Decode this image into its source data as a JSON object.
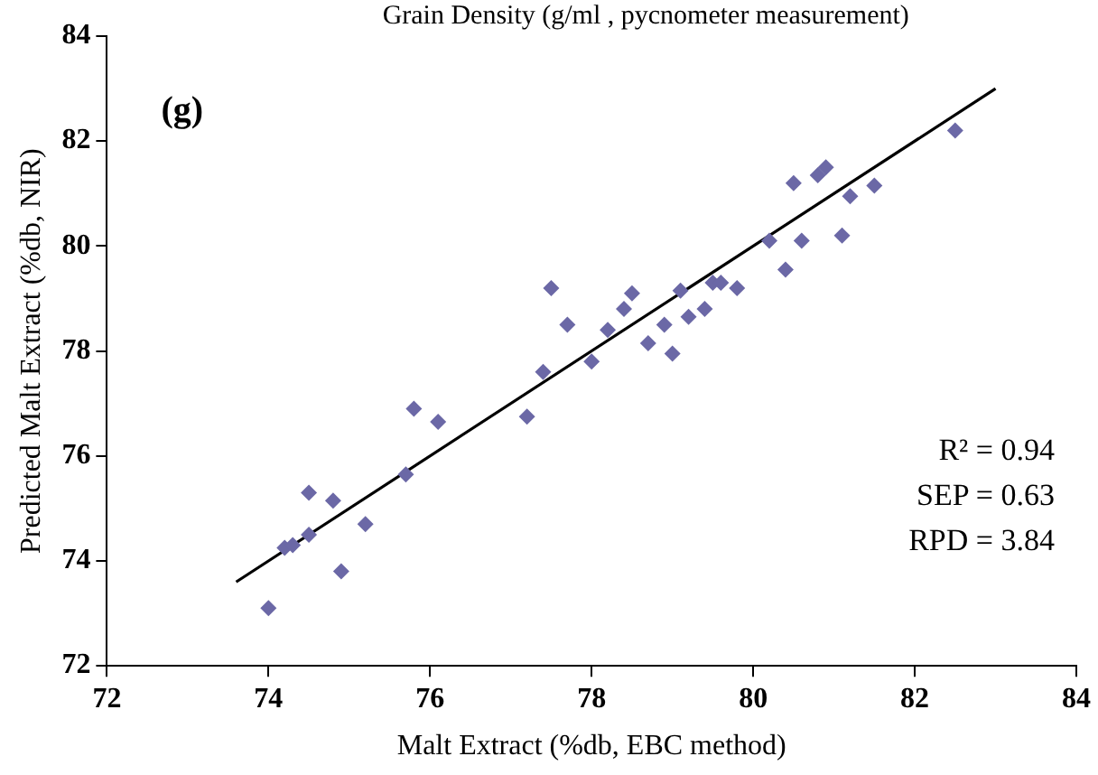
{
  "chart_data": {
    "type": "scatter",
    "xlabel": "Malt Extract (%db, EBC method)",
    "ylabel": "Predicted Malt Extract (%db, NIR)",
    "annotations": [
      "Grain Density (g/ml , pycnometer measurement)",
      "(g)",
      "R² = 0.94",
      "SEP = 0.63",
      "RPD = 3.84"
    ],
    "xlim": [
      72,
      84
    ],
    "xticks": [
      72,
      74,
      76,
      78,
      80,
      82,
      84
    ],
    "ylim": [
      72,
      84
    ],
    "yticks": [
      72,
      74,
      76,
      78,
      80,
      82,
      84
    ],
    "grid": false,
    "legend": false,
    "marker": "diamond",
    "series": [
      {
        "color": "#6b68a6",
        "x": [
          74.0,
          74.2,
          74.3,
          74.5,
          74.5,
          74.8,
          74.9,
          75.2,
          75.7,
          75.8,
          76.1,
          77.2,
          77.4,
          77.5,
          77.7,
          78.0,
          78.2,
          78.4,
          78.5,
          78.7,
          78.9,
          79.0,
          79.1,
          79.2,
          79.4,
          79.5,
          79.6,
          79.8,
          80.2,
          80.4,
          80.5,
          80.6,
          80.8,
          80.9,
          81.1,
          81.2,
          81.5,
          82.5
        ],
        "values": [
          73.1,
          74.25,
          74.3,
          74.5,
          75.3,
          75.15,
          73.8,
          74.7,
          75.65,
          76.9,
          76.65,
          76.75,
          77.6,
          79.2,
          78.5,
          77.8,
          78.4,
          78.8,
          79.1,
          78.15,
          78.5,
          77.95,
          79.15,
          78.65,
          78.8,
          79.3,
          79.3,
          79.2,
          80.1,
          79.55,
          81.2,
          80.1,
          81.35,
          81.5,
          80.2,
          80.95,
          81.15,
          82.2
        ]
      },
      {
        "type": "line",
        "color": "#000000",
        "x": [
          73.6,
          83.0
        ],
        "values": [
          73.6,
          83.0
        ],
        "marker": "none"
      }
    ]
  }
}
